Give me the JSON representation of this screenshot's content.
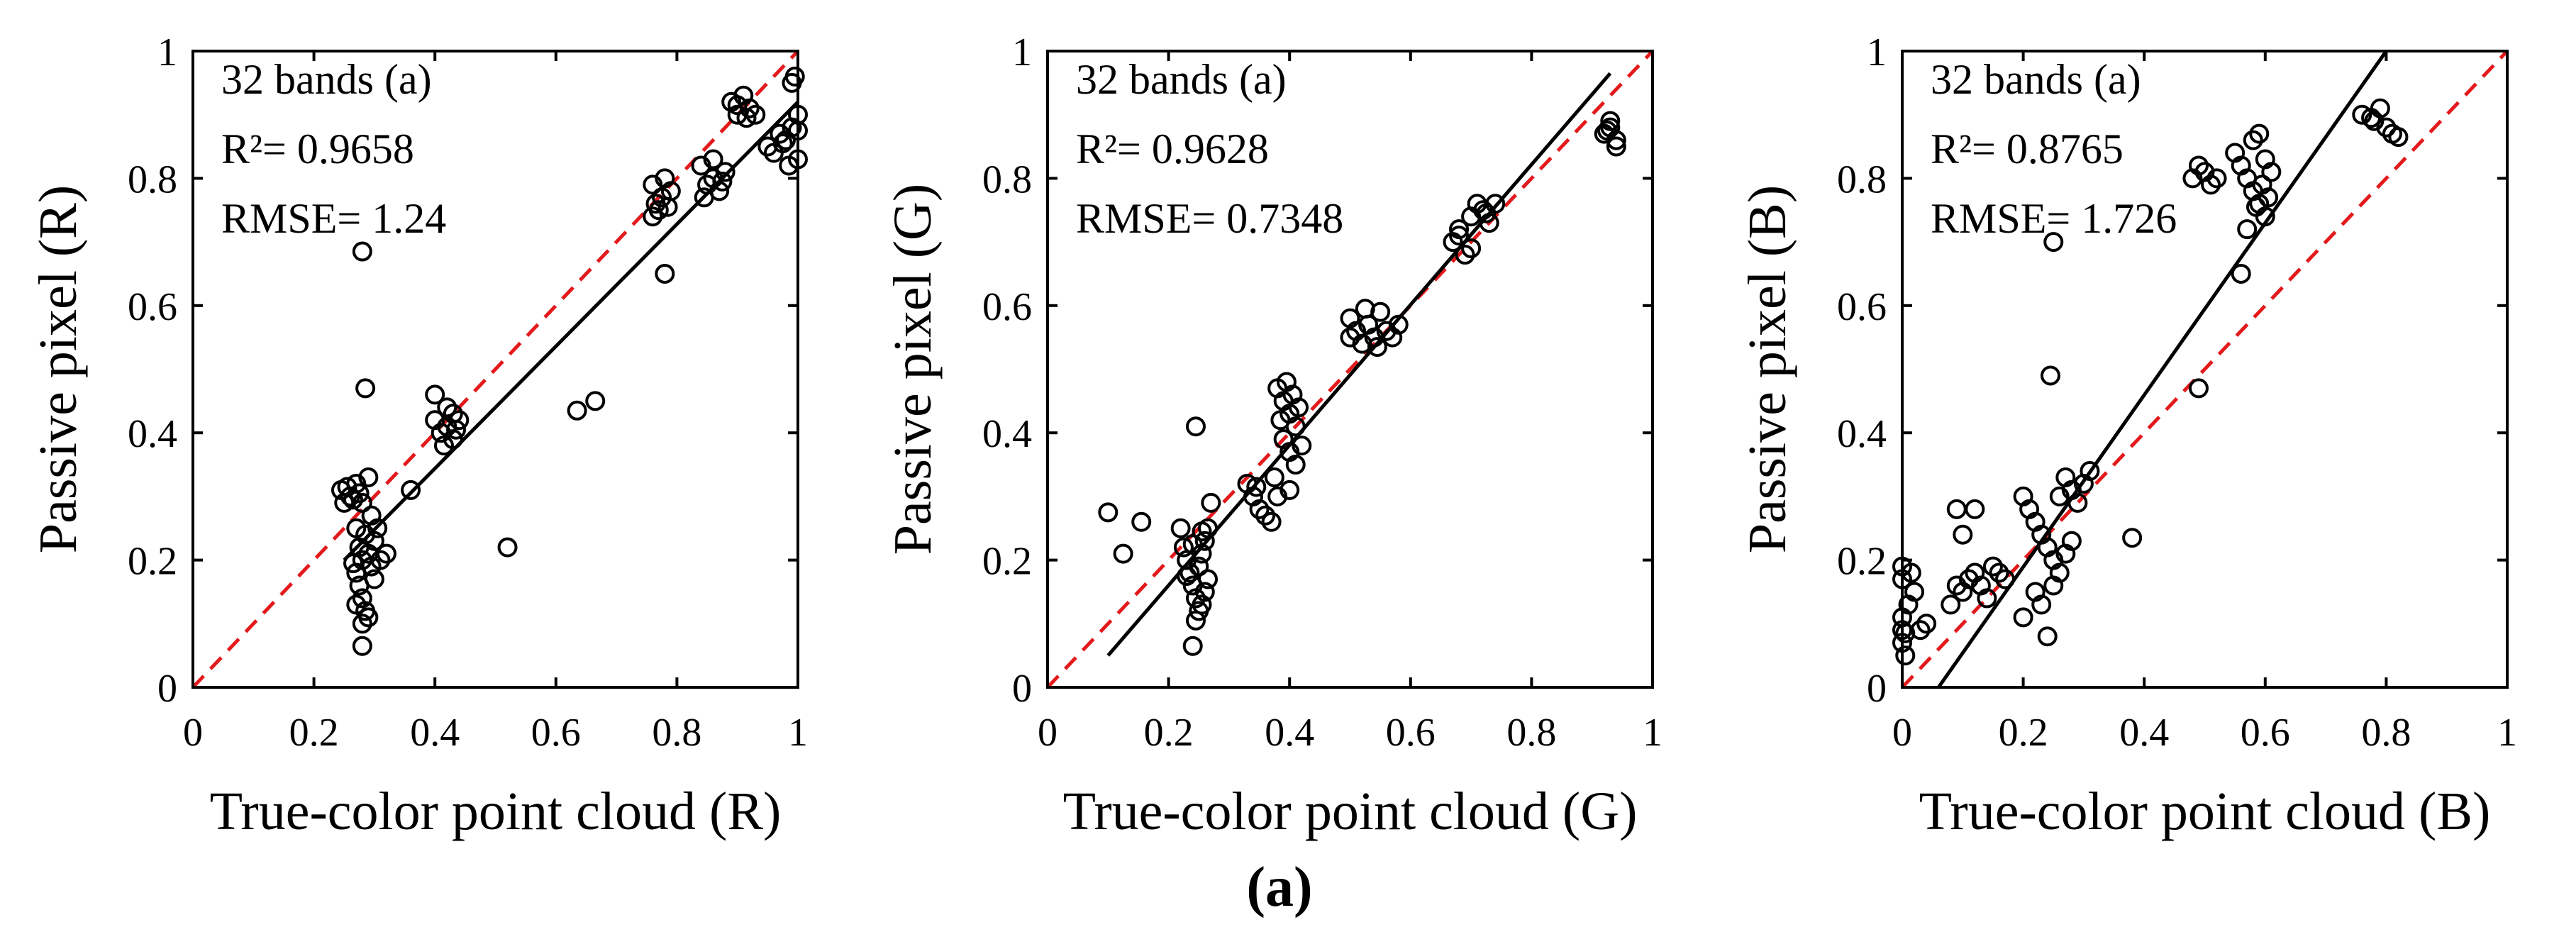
{
  "figure_caption": "(a)",
  "colors": {
    "points": "#000000",
    "fit_line": "#000000",
    "identity_line": "#e31a1c",
    "axes": "#000000"
  },
  "chart_data": [
    {
      "type": "scatter",
      "title": "",
      "xlabel": "True-color point cloud (R)",
      "ylabel": "Passive pixel (R)",
      "xlim": [
        0,
        1
      ],
      "ylim": [
        0,
        1
      ],
      "xticks": [
        0,
        0.2,
        0.4,
        0.6,
        0.8,
        1
      ],
      "yticks": [
        0,
        0.2,
        0.4,
        0.6,
        0.8,
        1
      ],
      "xtick_labels": [
        "0",
        "0.2",
        "0.4",
        "0.6",
        "0.8",
        "1"
      ],
      "ytick_labels": [
        "0",
        "0.2",
        "0.4",
        "0.6",
        "0.8",
        "1"
      ],
      "annotations": [
        "32  bands (a)",
        "R²= 0.9658",
        "RMSE= 1.24"
      ],
      "identity_line": [
        [
          0,
          0
        ],
        [
          1,
          1
        ]
      ],
      "fit_line": [
        [
          0.25,
          0.2
        ],
        [
          1,
          0.92
        ]
      ],
      "points": [
        [
          0.245,
          0.31
        ],
        [
          0.25,
          0.29
        ],
        [
          0.26,
          0.3
        ],
        [
          0.27,
          0.32
        ],
        [
          0.275,
          0.305
        ],
        [
          0.28,
          0.29
        ],
        [
          0.255,
          0.315
        ],
        [
          0.265,
          0.295
        ],
        [
          0.27,
          0.25
        ],
        [
          0.275,
          0.22
        ],
        [
          0.28,
          0.2
        ],
        [
          0.27,
          0.18
        ],
        [
          0.275,
          0.16
        ],
        [
          0.28,
          0.14
        ],
        [
          0.285,
          0.12
        ],
        [
          0.29,
          0.11
        ],
        [
          0.28,
          0.1
        ],
        [
          0.285,
          0.24
        ],
        [
          0.29,
          0.21
        ],
        [
          0.295,
          0.19
        ],
        [
          0.3,
          0.17
        ],
        [
          0.31,
          0.2
        ],
        [
          0.32,
          0.21
        ],
        [
          0.3,
          0.23
        ],
        [
          0.295,
          0.27
        ],
        [
          0.29,
          0.33
        ],
        [
          0.305,
          0.25
        ],
        [
          0.28,
          0.065
        ],
        [
          0.27,
          0.13
        ],
        [
          0.265,
          0.195
        ],
        [
          0.28,
          0.685
        ],
        [
          0.285,
          0.47
        ],
        [
          0.36,
          0.31
        ],
        [
          0.52,
          0.22
        ],
        [
          0.635,
          0.435
        ],
        [
          0.665,
          0.45
        ],
        [
          0.78,
          0.65
        ],
        [
          0.4,
          0.46
        ],
        [
          0.4,
          0.42
        ],
        [
          0.41,
          0.4
        ],
        [
          0.42,
          0.44
        ],
        [
          0.42,
          0.41
        ],
        [
          0.43,
          0.39
        ],
        [
          0.43,
          0.43
        ],
        [
          0.44,
          0.42
        ],
        [
          0.415,
          0.38
        ],
        [
          0.435,
          0.405
        ],
        [
          0.76,
          0.79
        ],
        [
          0.765,
          0.76
        ],
        [
          0.77,
          0.75
        ],
        [
          0.76,
          0.74
        ],
        [
          0.775,
          0.77
        ],
        [
          0.78,
          0.8
        ],
        [
          0.785,
          0.755
        ],
        [
          0.79,
          0.78
        ],
        [
          0.84,
          0.82
        ],
        [
          0.85,
          0.79
        ],
        [
          0.86,
          0.8
        ],
        [
          0.86,
          0.83
        ],
        [
          0.87,
          0.78
        ],
        [
          0.88,
          0.81
        ],
        [
          0.845,
          0.77
        ],
        [
          0.875,
          0.795
        ],
        [
          0.89,
          0.92
        ],
        [
          0.9,
          0.9
        ],
        [
          0.91,
          0.93
        ],
        [
          0.92,
          0.91
        ],
        [
          0.93,
          0.9
        ],
        [
          0.9,
          0.915
        ],
        [
          0.915,
          0.895
        ],
        [
          0.95,
          0.85
        ],
        [
          0.96,
          0.84
        ],
        [
          0.97,
          0.87
        ],
        [
          0.98,
          0.86
        ],
        [
          0.99,
          0.88
        ],
        [
          0.99,
          0.95
        ],
        [
          1,
          0.9
        ],
        [
          1,
          0.83
        ],
        [
          0.995,
          0.96
        ],
        [
          0.985,
          0.82
        ],
        [
          0.975,
          0.855
        ],
        [
          1,
          0.875
        ]
      ]
    },
    {
      "type": "scatter",
      "title": "",
      "xlabel": "True-color point cloud (G)",
      "ylabel": "Passive pixel (G)",
      "xlim": [
        0,
        1
      ],
      "ylim": [
        0,
        1
      ],
      "xticks": [
        0,
        0.2,
        0.4,
        0.6,
        0.8,
        1
      ],
      "yticks": [
        0,
        0.2,
        0.4,
        0.6,
        0.8,
        1
      ],
      "xtick_labels": [
        "0",
        "0.2",
        "0.4",
        "0.6",
        "0.8",
        "1"
      ],
      "ytick_labels": [
        "0",
        "0.2",
        "0.4",
        "0.6",
        "0.8",
        "1"
      ],
      "annotations": [
        "32  bands (a)",
        "R²= 0.9628",
        "RMSE= 0.7348"
      ],
      "identity_line": [
        [
          0,
          0
        ],
        [
          1,
          1
        ]
      ],
      "fit_line": [
        [
          0.1,
          0.05
        ],
        [
          0.93,
          0.965
        ]
      ],
      "points": [
        [
          0.1,
          0.275
        ],
        [
          0.125,
          0.21
        ],
        [
          0.155,
          0.26
        ],
        [
          0.245,
          0.41
        ],
        [
          0.22,
          0.25
        ],
        [
          0.225,
          0.22
        ],
        [
          0.23,
          0.2
        ],
        [
          0.235,
          0.18
        ],
        [
          0.24,
          0.16
        ],
        [
          0.245,
          0.14
        ],
        [
          0.25,
          0.12
        ],
        [
          0.255,
          0.13
        ],
        [
          0.26,
          0.15
        ],
        [
          0.265,
          0.17
        ],
        [
          0.25,
          0.19
        ],
        [
          0.255,
          0.21
        ],
        [
          0.26,
          0.23
        ],
        [
          0.265,
          0.25
        ],
        [
          0.27,
          0.29
        ],
        [
          0.24,
          0.065
        ],
        [
          0.245,
          0.105
        ],
        [
          0.23,
          0.175
        ],
        [
          0.255,
          0.245
        ],
        [
          0.24,
          0.225
        ],
        [
          0.33,
          0.32
        ],
        [
          0.34,
          0.3
        ],
        [
          0.35,
          0.28
        ],
        [
          0.36,
          0.27
        ],
        [
          0.37,
          0.26
        ],
        [
          0.38,
          0.3
        ],
        [
          0.375,
          0.33
        ],
        [
          0.345,
          0.315
        ],
        [
          0.38,
          0.47
        ],
        [
          0.39,
          0.45
        ],
        [
          0.4,
          0.43
        ],
        [
          0.41,
          0.41
        ],
        [
          0.39,
          0.39
        ],
        [
          0.4,
          0.37
        ],
        [
          0.41,
          0.35
        ],
        [
          0.42,
          0.38
        ],
        [
          0.395,
          0.48
        ],
        [
          0.405,
          0.46
        ],
        [
          0.385,
          0.42
        ],
        [
          0.415,
          0.44
        ],
        [
          0.4,
          0.31
        ],
        [
          0.5,
          0.58
        ],
        [
          0.51,
          0.56
        ],
        [
          0.52,
          0.54
        ],
        [
          0.53,
          0.57
        ],
        [
          0.54,
          0.55
        ],
        [
          0.55,
          0.59
        ],
        [
          0.56,
          0.56
        ],
        [
          0.57,
          0.55
        ],
        [
          0.58,
          0.57
        ],
        [
          0.5,
          0.55
        ],
        [
          0.525,
          0.595
        ],
        [
          0.545,
          0.535
        ],
        [
          0.67,
          0.7
        ],
        [
          0.68,
          0.72
        ],
        [
          0.69,
          0.68
        ],
        [
          0.7,
          0.74
        ],
        [
          0.71,
          0.76
        ],
        [
          0.72,
          0.75
        ],
        [
          0.73,
          0.73
        ],
        [
          0.74,
          0.76
        ],
        [
          0.68,
          0.71
        ],
        [
          0.7,
          0.69
        ],
        [
          0.725,
          0.745
        ],
        [
          0.92,
          0.87
        ],
        [
          0.93,
          0.89
        ],
        [
          0.94,
          0.86
        ],
        [
          0.93,
          0.88
        ],
        [
          0.94,
          0.85
        ],
        [
          0.925,
          0.875
        ]
      ]
    },
    {
      "type": "scatter",
      "title": "",
      "xlabel": "True-color point cloud (B)",
      "ylabel": "Passive pixel (B)",
      "xlim": [
        0,
        1
      ],
      "ylim": [
        0,
        1
      ],
      "xticks": [
        0,
        0.2,
        0.4,
        0.6,
        0.8,
        1
      ],
      "yticks": [
        0,
        0.2,
        0.4,
        0.6,
        0.8,
        1
      ],
      "xtick_labels": [
        "0",
        "0.2",
        "0.4",
        "0.6",
        "0.8",
        "1"
      ],
      "ytick_labels": [
        "0",
        "0.2",
        "0.4",
        "0.6",
        "0.8",
        "1"
      ],
      "annotations": [
        "32  bands (a)",
        "R²= 0.8765",
        "RMSE= 1.726"
      ],
      "identity_line": [
        [
          0,
          0
        ],
        [
          1,
          1
        ]
      ],
      "fit_line": [
        [
          0.06,
          0
        ],
        [
          0.8,
          1.0
        ]
      ],
      "points": [
        [
          0,
          0.19
        ],
        [
          0,
          0.17
        ],
        [
          0,
          0.11
        ],
        [
          0,
          0.09
        ],
        [
          0,
          0.07
        ],
        [
          0.005,
          0.05
        ],
        [
          0.01,
          0.13
        ],
        [
          0.015,
          0.18
        ],
        [
          0.02,
          0.15
        ],
        [
          0.03,
          0.09
        ],
        [
          0.04,
          0.1
        ],
        [
          0.005,
          0.085
        ],
        [
          0.08,
          0.13
        ],
        [
          0.09,
          0.16
        ],
        [
          0.1,
          0.15
        ],
        [
          0.11,
          0.17
        ],
        [
          0.12,
          0.18
        ],
        [
          0.13,
          0.16
        ],
        [
          0.14,
          0.14
        ],
        [
          0.15,
          0.19
        ],
        [
          0.16,
          0.18
        ],
        [
          0.17,
          0.17
        ],
        [
          0.12,
          0.28
        ],
        [
          0.09,
          0.28
        ],
        [
          0.1,
          0.24
        ],
        [
          0.2,
          0.3
        ],
        [
          0.21,
          0.28
        ],
        [
          0.22,
          0.26
        ],
        [
          0.23,
          0.24
        ],
        [
          0.24,
          0.22
        ],
        [
          0.25,
          0.2
        ],
        [
          0.26,
          0.18
        ],
        [
          0.27,
          0.21
        ],
        [
          0.28,
          0.23
        ],
        [
          0.29,
          0.29
        ],
        [
          0.3,
          0.32
        ],
        [
          0.31,
          0.34
        ],
        [
          0.22,
          0.15
        ],
        [
          0.23,
          0.13
        ],
        [
          0.2,
          0.11
        ],
        [
          0.24,
          0.08
        ],
        [
          0.25,
          0.16
        ],
        [
          0.26,
          0.3
        ],
        [
          0.27,
          0.33
        ],
        [
          0.28,
          0.31
        ],
        [
          0.245,
          0.49
        ],
        [
          0.25,
          0.7
        ],
        [
          0.38,
          0.235
        ],
        [
          0.49,
          0.47
        ],
        [
          0.48,
          0.8
        ],
        [
          0.49,
          0.82
        ],
        [
          0.5,
          0.81
        ],
        [
          0.51,
          0.79
        ],
        [
          0.52,
          0.8
        ],
        [
          0.55,
          0.84
        ],
        [
          0.56,
          0.82
        ],
        [
          0.57,
          0.8
        ],
        [
          0.58,
          0.78
        ],
        [
          0.59,
          0.76
        ],
        [
          0.6,
          0.74
        ],
        [
          0.58,
          0.86
        ],
        [
          0.59,
          0.87
        ],
        [
          0.6,
          0.83
        ],
        [
          0.61,
          0.81
        ],
        [
          0.57,
          0.72
        ],
        [
          0.56,
          0.65
        ],
        [
          0.595,
          0.79
        ],
        [
          0.585,
          0.755
        ],
        [
          0.605,
          0.77
        ],
        [
          0.76,
          0.9
        ],
        [
          0.78,
          0.89
        ],
        [
          0.79,
          0.91
        ],
        [
          0.8,
          0.88
        ],
        [
          0.81,
          0.87
        ],
        [
          0.82,
          0.865
        ],
        [
          0.775,
          0.895
        ]
      ]
    }
  ]
}
